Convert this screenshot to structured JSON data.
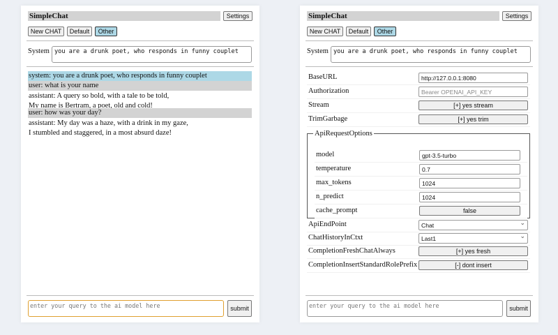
{
  "app": {
    "title": "SimpleChat",
    "settings_label": "Settings",
    "new_chat_label": "New CHAT",
    "chats": [
      "Default",
      "Other"
    ],
    "selected_chat": "Other"
  },
  "system": {
    "label": "System",
    "value": "you are a drunk poet, who responds in funny couplet"
  },
  "chat": {
    "messages": [
      {
        "role": "system",
        "lines": [
          "system: you are a drunk poet, who responds in funny couplet"
        ]
      },
      {
        "role": "user",
        "lines": [
          "user: what is your name"
        ]
      },
      {
        "role": "assistant",
        "lines": [
          "assistant: A query so bold, with a tale to be told,",
          "My name is Bertram, a poet, old and cold!"
        ]
      },
      {
        "role": "user",
        "lines": [
          "user: how was your day?"
        ]
      },
      {
        "role": "assistant",
        "lines": [
          "assistant: My day was a haze, with a drink in my gaze,",
          "I stumbled and staggered, in a most absurd daze!"
        ]
      }
    ]
  },
  "query": {
    "placeholder": "enter your query to the ai model here",
    "submit_label": "submit"
  },
  "settings": {
    "base_url": {
      "label": "BaseURL",
      "value": "http://127.0.0.1:8080"
    },
    "authorization": {
      "label": "Authorization",
      "placeholder": "Bearer OPENAI_API_KEY"
    },
    "stream": {
      "label": "Stream",
      "value": "[+] yes stream"
    },
    "trim_garbage": {
      "label": "TrimGarbage",
      "value": "[+] yes trim"
    },
    "api_request_options": {
      "legend": "ApiRequestOptions",
      "model": {
        "label": "model",
        "value": "gpt-3.5-turbo"
      },
      "temperature": {
        "label": "temperature",
        "value": "0.7"
      },
      "max_tokens": {
        "label": "max_tokens",
        "value": "1024"
      },
      "n_predict": {
        "label": "n_predict",
        "value": "1024"
      },
      "cache_prompt": {
        "label": "cache_prompt",
        "value": "false"
      }
    },
    "api_endpoint": {
      "label": "ApiEndPoint",
      "value": "Chat"
    },
    "chat_history": {
      "label": "ChatHistoryInCtxt",
      "value": "Last1"
    },
    "fresh_chat": {
      "label": "CompletionFreshChatAlways",
      "value": "[+] yes fresh"
    },
    "insert_prefix": {
      "label": "CompletionInsertStandardRolePrefix",
      "value": "[-] dont insert"
    }
  },
  "colors": {
    "background": "#edf0f5",
    "selected": "#add8e6",
    "user_bg": "#d3d3d3",
    "focus": "#e0a030"
  }
}
